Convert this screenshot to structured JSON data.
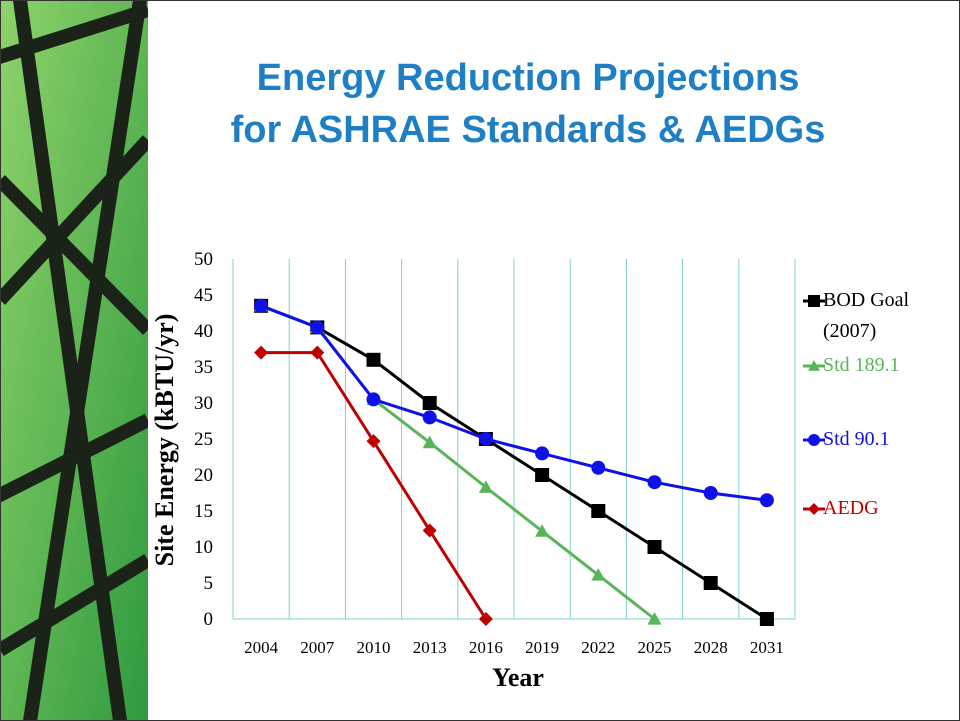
{
  "chart_data": {
    "type": "line",
    "title": "Energy Reduction Projections\nfor ASHRAE Standards & AEDGs",
    "x_label": "Year",
    "y_label": "Site Energy (kBTU/yr)",
    "categories": [
      "2004",
      "2007",
      "2010",
      "2013",
      "2016",
      "2019",
      "2022",
      "2025",
      "2028",
      "2031"
    ],
    "ylim": [
      0,
      50
    ],
    "yticks": [
      0,
      5,
      10,
      15,
      20,
      25,
      30,
      35,
      40,
      45,
      50
    ],
    "grid": "x",
    "legend": "right",
    "series": [
      {
        "name": "BOD Goal (2007)",
        "color": "#000000",
        "marker": "square",
        "values": [
          43.5,
          40.5,
          36,
          30,
          25,
          20,
          15,
          10,
          5,
          0
        ]
      },
      {
        "name": "Std 189.1",
        "color": "#5ab55a",
        "marker": "triangle",
        "values": [
          43.5,
          40.5,
          30.5,
          24.5,
          18.3,
          12.2,
          6.1,
          0,
          null,
          null
        ]
      },
      {
        "name": "Std 90.1",
        "color": "#1010e8",
        "marker": "circle",
        "values": [
          43.5,
          40.5,
          30.5,
          28,
          25,
          23,
          21,
          19,
          17.5,
          16.5
        ]
      },
      {
        "name": "AEDG",
        "color": "#c00000",
        "marker": "diamond",
        "values": [
          37,
          37,
          24.7,
          12.3,
          0,
          null,
          null,
          null,
          null,
          null
        ]
      }
    ]
  }
}
